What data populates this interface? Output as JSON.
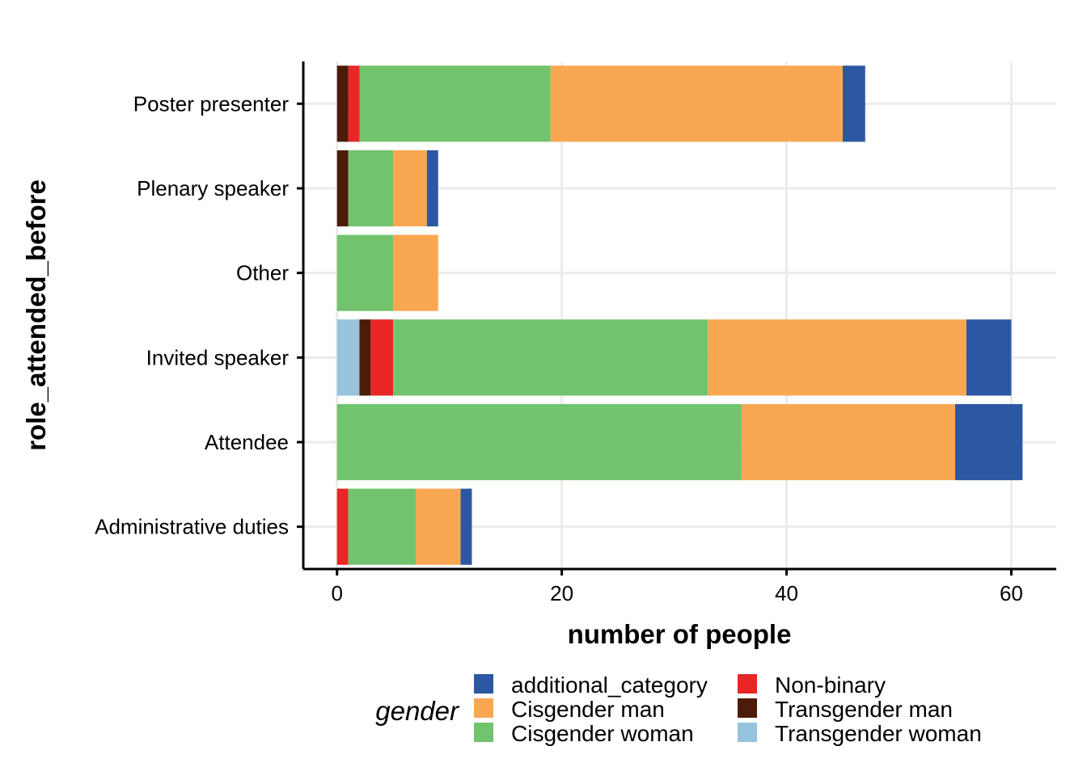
{
  "chart_data": {
    "type": "bar",
    "orientation": "horizontal",
    "stacked": true,
    "xlabel": "number of people",
    "ylabel": "role_attended_before",
    "xlim": [
      -3,
      64
    ],
    "xticks": [
      0,
      20,
      40,
      60
    ],
    "grid": true,
    "legend_position": "bottom",
    "categories": [
      "Administrative duties",
      "Attendee",
      "Invited speaker",
      "Other",
      "Plenary speaker",
      "Poster presenter"
    ],
    "series": [
      {
        "name": "Transgender woman",
        "color": "#96c3dd",
        "values": [
          0,
          0,
          2,
          0,
          0,
          0
        ]
      },
      {
        "name": "Transgender man",
        "color": "#4d1b0a",
        "values": [
          0,
          0,
          1,
          0,
          1,
          1
        ]
      },
      {
        "name": "Non-binary",
        "color": "#e82626",
        "values": [
          1,
          0,
          2,
          0,
          0,
          1
        ]
      },
      {
        "name": "Cisgender woman",
        "color": "#71c36d",
        "values": [
          6,
          36,
          28,
          5,
          4,
          17
        ]
      },
      {
        "name": "Cisgender man",
        "color": "#faa752",
        "values": [
          4,
          19,
          23,
          4,
          3,
          26
        ]
      },
      {
        "name": "additional_category",
        "color": "#2c58a3",
        "values": [
          1,
          6,
          4,
          0,
          1,
          2
        ]
      }
    ],
    "legend": {
      "title": "gender",
      "entries": [
        {
          "label": "additional_category",
          "color": "#2c58a3"
        },
        {
          "label": "Cisgender man",
          "color": "#faa752"
        },
        {
          "label": "Cisgender woman",
          "color": "#71c36d"
        },
        {
          "label": "Non-binary",
          "color": "#e82626"
        },
        {
          "label": "Transgender man",
          "color": "#4d1b0a"
        },
        {
          "label": "Transgender woman",
          "color": "#96c3dd"
        }
      ]
    }
  }
}
